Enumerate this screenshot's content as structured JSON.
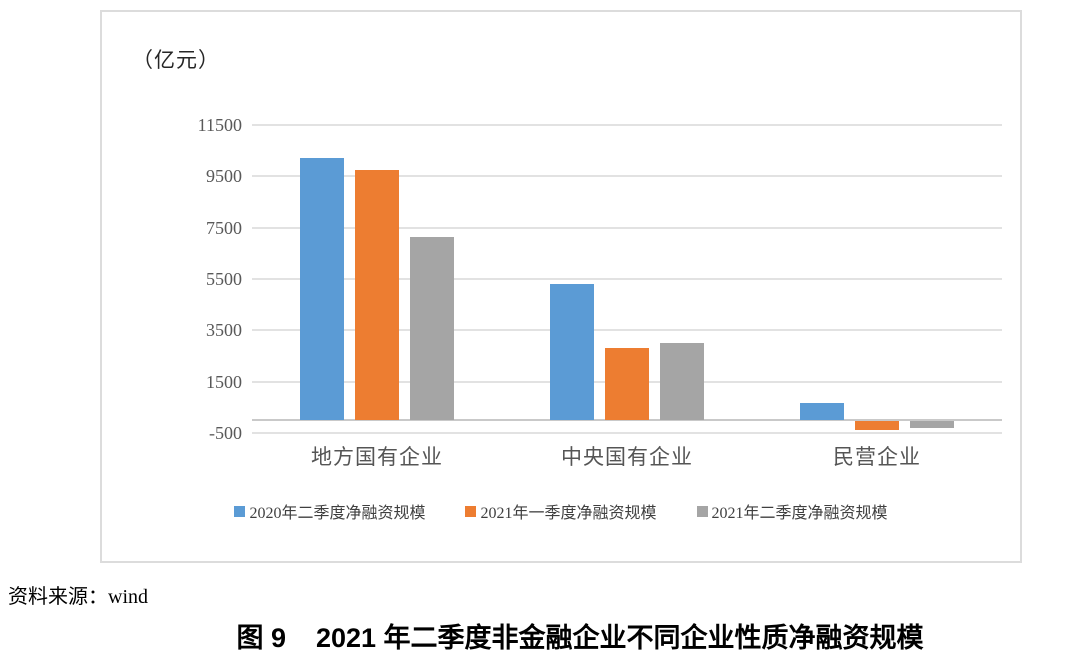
{
  "unit_label": "（亿元）",
  "source_note": "资料来源：wind",
  "caption": {
    "prefix": "图 9",
    "title": "2021 年二季度非金融企业不同企业性质净融资规模"
  },
  "chart_data": {
    "type": "bar",
    "title": "2021 年二季度非金融企业不同企业性质净融资规模",
    "unit": "亿元",
    "categories": [
      "地方国有企业",
      "中央国有企业",
      "民营企业"
    ],
    "series": [
      {
        "name": "2020年二季度净融资规模",
        "color": "#5B9BD5",
        "values": [
          10200,
          5300,
          680
        ]
      },
      {
        "name": "2021年一季度净融资规模",
        "color": "#ED7D31",
        "values": [
          9750,
          2800,
          -350
        ]
      },
      {
        "name": "2021年二季度净融资规模",
        "color": "#A5A5A5",
        "values": [
          7150,
          3000,
          -280
        ]
      }
    ],
    "y_ticks": [
      11500,
      9500,
      7500,
      5500,
      3500,
      1500,
      -500
    ],
    "ylim": [
      -500,
      11500
    ],
    "grid": true,
    "legend_position": "bottom",
    "colors": {
      "gridline": "#e2e2e2",
      "zero_axis": "#c9c9c9",
      "tick_text": "#595959",
      "panel_border": "#dcdcdc"
    }
  }
}
